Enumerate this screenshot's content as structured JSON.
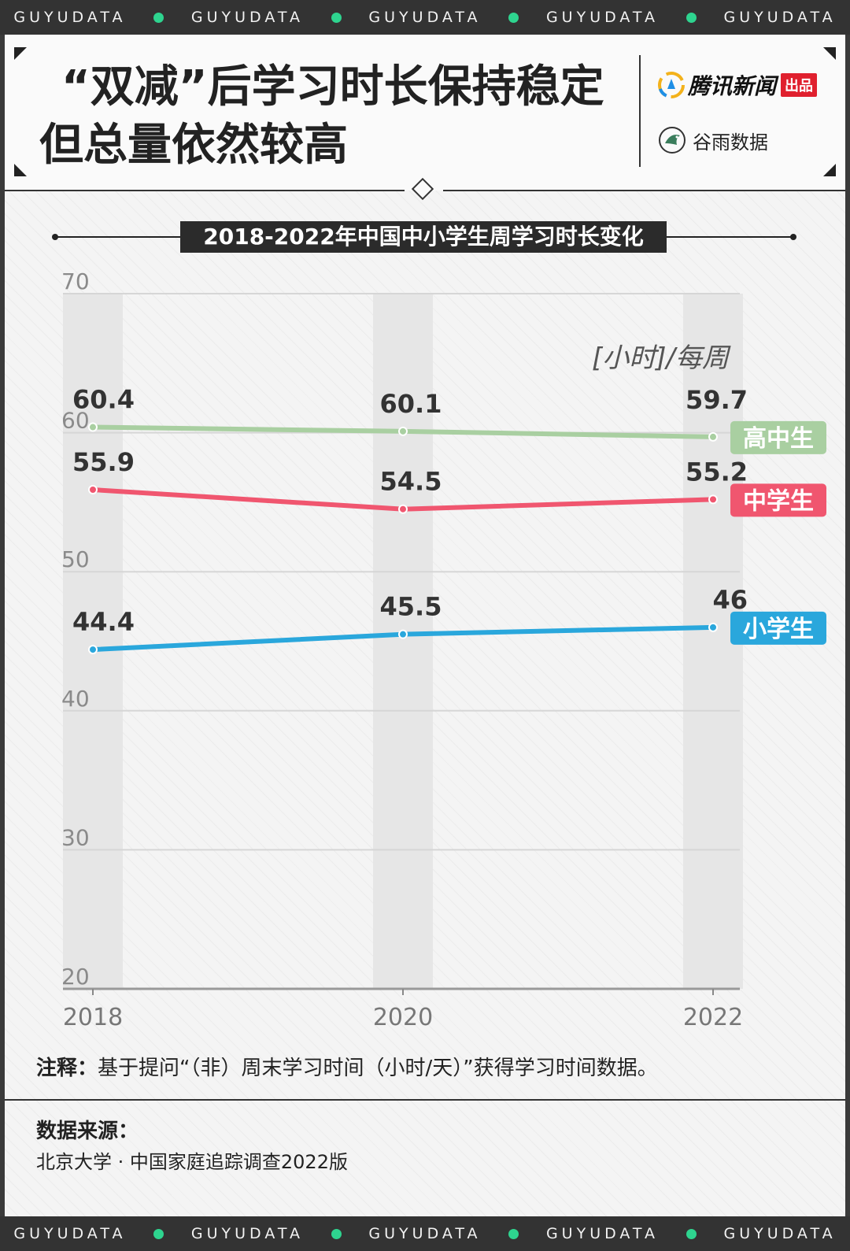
{
  "band": {
    "word": "GUYUDATA"
  },
  "header": {
    "title_line1": "“双减”后学习时长保持稳定",
    "title_line2": "但总量依然较高",
    "brand1": "腾讯新闻",
    "brand1_badge": "出品",
    "brand2": "谷雨数据",
    "brand2_sub": "GUYUDATA"
  },
  "chart_data": {
    "type": "line",
    "title": "2018-2022年中国中小学生周学习时长变化",
    "unit_label": "[小时]/每周",
    "x": [
      "2018",
      "2020",
      "2022"
    ],
    "ylim": [
      20,
      70
    ],
    "y_ticks": [
      "70",
      "60",
      "50",
      "40",
      "30",
      "20"
    ],
    "grid": true,
    "series": [
      {
        "name": "高中生",
        "values": [
          60.4,
          60.1,
          59.7
        ],
        "labels": [
          "60.4",
          "60.1",
          "59.7"
        ],
        "color": "#a9cfa1"
      },
      {
        "name": "中学生",
        "values": [
          55.9,
          54.5,
          55.2
        ],
        "labels": [
          "55.9",
          "54.5",
          "55.2"
        ],
        "color": "#f0566f"
      },
      {
        "name": "小学生",
        "values": [
          44.4,
          45.5,
          46
        ],
        "labels": [
          "44.4",
          "45.5",
          "46"
        ],
        "color": "#2aa7dc"
      }
    ]
  },
  "note": {
    "label": "注释：",
    "text": "基于提问“（非）周末学习时间（小时/天）”获得学习时间数据。"
  },
  "source": {
    "label": "数据来源：",
    "text": "北京大学 · 中国家庭追踪调查2022版"
  }
}
